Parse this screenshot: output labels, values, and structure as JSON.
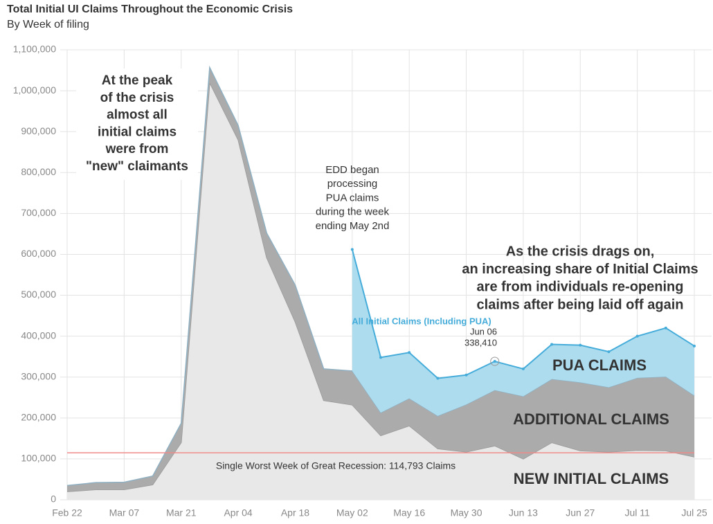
{
  "chart_data": {
    "type": "stacked-area",
    "title": "Total Initial UI Claims Throughout the Economic Crisis",
    "subtitle": "By Week of filing",
    "categories": [
      "Feb 22",
      null,
      "Mar 07",
      null,
      "Mar 21",
      null,
      "Apr 04",
      null,
      "Apr 18",
      null,
      "May 02",
      null,
      "May 16",
      null,
      "May 30",
      null,
      "Jun 13",
      null,
      "Jun 27",
      null,
      "Jul 11",
      null,
      "Jul 25"
    ],
    "series": [
      {
        "name": "NEW INITIAL CLAIMS",
        "color": "#e8e8e8",
        "values": [
          20000,
          25000,
          25000,
          37000,
          140000,
          1020000,
          880000,
          592000,
          435000,
          243000,
          232000,
          157000,
          181000,
          125000,
          117000,
          132000,
          100000,
          140000,
          120000,
          117000,
          121000,
          120000,
          105000
        ]
      },
      {
        "name": "ADDITIONAL CLAIMS",
        "color": "#ababab",
        "values": [
          15000,
          17000,
          18000,
          21000,
          47000,
          37000,
          35000,
          60000,
          90000,
          77000,
          83000,
          56000,
          67000,
          80000,
          116000,
          136000,
          153000,
          155000,
          167000,
          158000,
          177000,
          181000,
          150000
        ]
      },
      {
        "name": "PUA CLAIMS",
        "color": "#acdcee",
        "values": [
          null,
          null,
          null,
          null,
          null,
          null,
          null,
          null,
          null,
          null,
          297000,
          135000,
          112000,
          92000,
          72000,
          70410,
          67000,
          85000,
          91000,
          87000,
          102000,
          119000,
          121000
        ]
      }
    ],
    "total_line_label": "All Initial Claims (Including PUA)",
    "total_line_color": "#45acda",
    "ylim": [
      0,
      1100000
    ],
    "yticks": [
      0,
      {
        "value": 100000,
        "label": "100,000"
      },
      {
        "value": 200000,
        "label": "200,000"
      },
      {
        "value": 300000,
        "label": "300,000"
      },
      {
        "value": 400000,
        "label": "400,000"
      },
      {
        "value": 500000,
        "label": "500,000"
      },
      {
        "value": 600000,
        "label": "600,000"
      },
      {
        "value": 700000,
        "label": "700,000"
      },
      {
        "value": 800000,
        "label": "800,000"
      },
      {
        "value": 900000,
        "label": "900,000"
      },
      {
        "value": 1000000,
        "label": "1,000,000"
      },
      {
        "value": 1100000,
        "label": "1,100,000"
      }
    ],
    "grid": true,
    "reference": {
      "value": 114793,
      "label": "Single Worst Week of Great Recession: 114,793 Claims",
      "color": "#f08a8a"
    },
    "tooltip": {
      "label": "Jun 06",
      "value": 338410,
      "value_label": "338,410"
    },
    "annotations": {
      "peak": [
        "At the peak",
        "of the crisis",
        "almost all",
        "initial claims",
        "were from",
        "\"new\" claimants"
      ],
      "edd": [
        "EDD began",
        "processing",
        "PUA claims",
        "during the week",
        "ending May 2nd"
      ],
      "drags": [
        "As the crisis drags on,",
        "an increasing share of Initial Claims",
        "are from individuals re-opening",
        "claims after being laid off again"
      ]
    }
  }
}
